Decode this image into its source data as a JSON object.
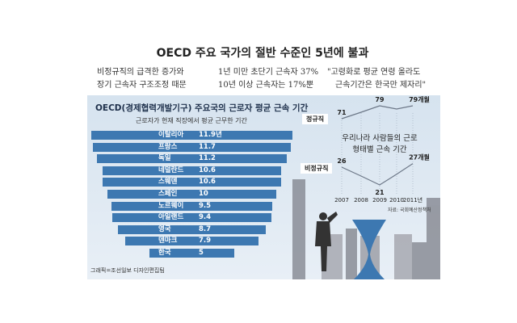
{
  "headline": "OECD 주요 국가의 절반 수준인 5년에 불과",
  "subheads": [
    {
      "line1": "비정규직의 급격한 증가와",
      "line2": "장기 근속자 구조조정 때문"
    },
    {
      "line1": "1년 미만 초단기 근속자 37%",
      "line2": "10년 이상 근속자는 17%뿐"
    },
    {
      "line1": "\"고령화로 평균 연령 올라도",
      "line2": "근속기간은 한국만 제자리\""
    }
  ],
  "credit": "그래픽=조선일보 디자인편집팀",
  "chart_data": [
    {
      "type": "bar",
      "title": "OECD(경제협력개발기구) 주요국의 근로자 평균 근속 기간",
      "subtitle": "근로자가 현재 직장에서 평균 근무한 기간",
      "categories": [
        "이탈리아",
        "프랑스",
        "독일",
        "네덜란드",
        "스웨덴",
        "스페인",
        "노르웨이",
        "아일랜드",
        "영국",
        "덴마크",
        "한국"
      ],
      "values": [
        11.9,
        11.7,
        11.2,
        10.6,
        10.6,
        10,
        9.5,
        9.4,
        8.7,
        7.9,
        5
      ],
      "labels": [
        "11.9년",
        "11.7",
        "11.2",
        "10.6",
        "10.6",
        "10",
        "9.5",
        "9.4",
        "8.7",
        "7.9",
        "5"
      ],
      "color": "#3d78b1"
    },
    {
      "type": "line",
      "title": "우리나라 사람들의 근로 형태별 근속 기간",
      "x": [
        "2007",
        "2008",
        "2009",
        "2010",
        "2011년"
      ],
      "series": [
        {
          "name": "정규직",
          "values": [
            71,
            75,
            79,
            77,
            79
          ],
          "labels": [
            "71",
            "",
            "79",
            "",
            "79개월"
          ]
        },
        {
          "name": "비정규직",
          "values": [
            26,
            23.5,
            21,
            24,
            27
          ],
          "labels": [
            "26",
            "",
            "21",
            "",
            "27개월"
          ]
        }
      ],
      "source": "자료: 국회예산정책처"
    }
  ]
}
